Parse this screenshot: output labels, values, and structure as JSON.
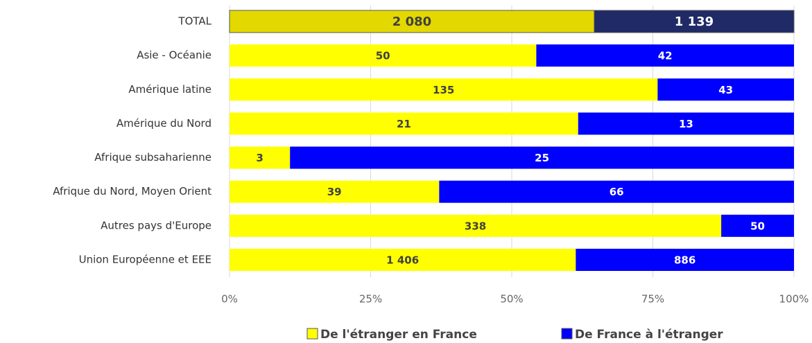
{
  "chart_data": {
    "type": "bar",
    "orientation": "horizontal",
    "stacking": "percent",
    "categories": [
      "TOTAL",
      "Asie - Océanie",
      "Amérique latine",
      "Amérique du Nord",
      "Afrique subsaharienne",
      "Afrique du Nord, Moyen Orient",
      "Autres pays d'Europe",
      "Union Européenne et EEE"
    ],
    "series": [
      {
        "name": "De l'étranger en France",
        "color": "#ffff00",
        "colors": [
          "#e3d800",
          "#ffff00",
          "#ffff00",
          "#ffff00",
          "#ffff00",
          "#ffff00",
          "#ffff00",
          "#ffff00"
        ],
        "label_color": "#404040",
        "values": [
          2080,
          50,
          135,
          21,
          3,
          39,
          338,
          1406
        ],
        "value_labels": [
          "2 080",
          "50",
          "135",
          "21",
          "3",
          "39",
          "338",
          "1 406"
        ]
      },
      {
        "name": "De France à l'étranger",
        "color": "#0000ff",
        "colors": [
          "#1f2a66",
          "#0000ff",
          "#0000ff",
          "#0000ff",
          "#0000ff",
          "#0000ff",
          "#0000ff",
          "#0000ff"
        ],
        "label_color": "#ffffff",
        "values": [
          1139,
          42,
          43,
          13,
          25,
          66,
          50,
          886
        ],
        "value_labels": [
          "1 139",
          "42",
          "43",
          "13",
          "25",
          "66",
          "50",
          "886"
        ]
      }
    ],
    "xlim": [
      0,
      100
    ],
    "xticks": [
      {
        "value": 0,
        "label": "0%"
      },
      {
        "value": 25,
        "label": "25%"
      },
      {
        "value": 50,
        "label": "50%"
      },
      {
        "value": 75,
        "label": "75%"
      },
      {
        "value": 100,
        "label": "100%"
      }
    ],
    "grid": true,
    "legend": "bottom"
  }
}
